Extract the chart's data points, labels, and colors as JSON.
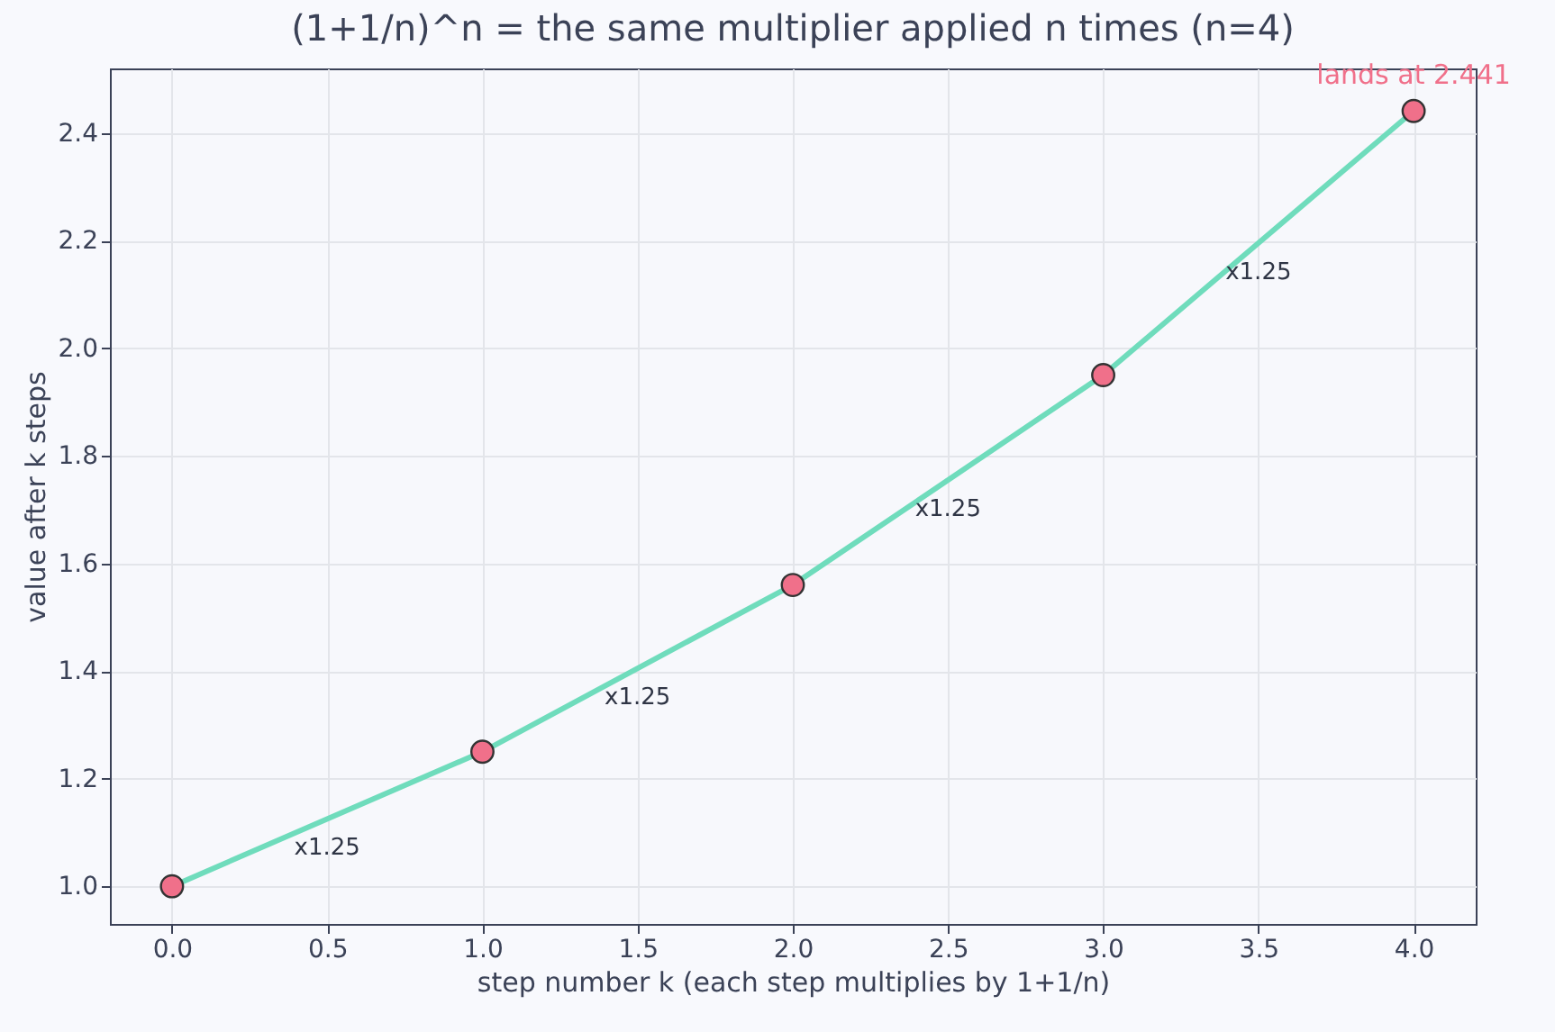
{
  "chart_data": {
    "type": "line",
    "title": "(1+1/n)^n = the same multiplier applied n times  (n=4)",
    "xlabel": "step number k  (each step multiplies by 1+1/n)",
    "ylabel": "value after k steps",
    "x": [
      0,
      1,
      2,
      3,
      4
    ],
    "series": [
      {
        "color": "#6fdcbc",
        "values": [
          1,
          1.25,
          1.56,
          1.95,
          2.441
        ]
      },
      {
        "type": "scatter",
        "color": "#f0708a",
        "marker": "circle",
        "values": [
          1,
          1.25,
          1.56,
          1.95,
          2.441
        ]
      }
    ],
    "xlim": [
      -0.2,
      4.2
    ],
    "ylim": [
      0.93,
      2.52
    ],
    "xticks": [
      {
        "value": 0,
        "label": "0.0"
      },
      {
        "value": 0.5,
        "label": "0.5"
      },
      {
        "value": 1,
        "label": "1.0"
      },
      {
        "value": 1.5,
        "label": "1.5"
      },
      {
        "value": 2,
        "label": "2.0"
      },
      {
        "value": 2.5,
        "label": "2.5"
      },
      {
        "value": 3,
        "label": "3.0"
      },
      {
        "value": 3.5,
        "label": "3.5"
      },
      {
        "value": 4,
        "label": "4.0"
      }
    ],
    "yticks": [
      {
        "value": 1,
        "label": "1.0"
      },
      {
        "value": 1.2,
        "label": "1.2"
      },
      {
        "value": 1.4,
        "label": "1.4"
      },
      {
        "value": 1.6,
        "label": "1.6"
      },
      {
        "value": 1.8,
        "label": "1.8"
      },
      {
        "value": 2,
        "label": "2.0"
      },
      {
        "value": 2.2,
        "label": "2.2"
      },
      {
        "value": 2.4,
        "label": "2.4"
      }
    ],
    "grid": true,
    "annotations": [
      "x1.25",
      "x1.25",
      "x1.25",
      "x1.25",
      "lands at 2.441"
    ]
  }
}
